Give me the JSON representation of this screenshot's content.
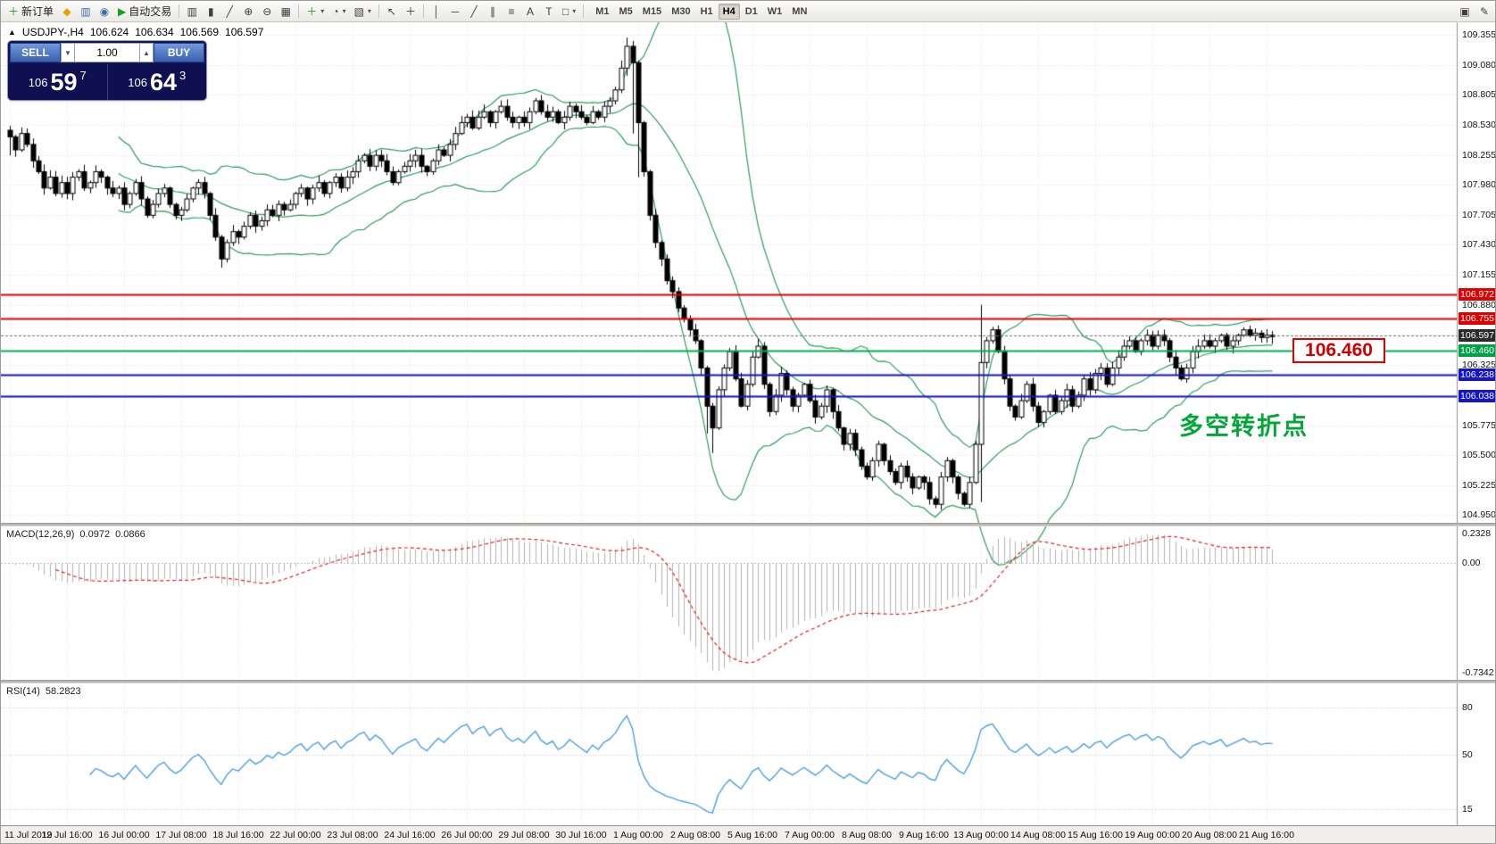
{
  "toolbar": {
    "items": [
      {
        "name": "new-order",
        "glyph": "＋",
        "color": "#18a018",
        "label": "新订单"
      },
      {
        "name": "metaquotes",
        "glyph": "◆",
        "color": "#e0a500"
      },
      {
        "name": "market-watch",
        "glyph": "▥",
        "color": "#3a6ea5"
      },
      {
        "name": "data-window",
        "glyph": "◉",
        "color": "#3a6ea5"
      },
      {
        "name": "auto-trading",
        "glyph": "▶",
        "color": "#18a018",
        "label": "自动交易"
      },
      {
        "name": "sep"
      },
      {
        "name": "chart-bars",
        "glyph": "▥",
        "color": "#404040"
      },
      {
        "name": "chart-candles",
        "glyph": "▮",
        "color": "#404040"
      },
      {
        "name": "chart-line",
        "glyph": "╱",
        "color": "#404040"
      },
      {
        "name": "zoom-in",
        "glyph": "⊕",
        "color": "#404040"
      },
      {
        "name": "zoom-out",
        "glyph": "⊖",
        "color": "#404040"
      },
      {
        "name": "tile-windows",
        "glyph": "▦",
        "color": "#404040"
      },
      {
        "name": "sep"
      },
      {
        "name": "indicators-add",
        "glyph": "＋",
        "color": "#18a018",
        "dropdown": true
      },
      {
        "name": "periods",
        "glyph": "◔",
        "color": "#404040",
        "dropdown": true
      },
      {
        "name": "templates",
        "glyph": "▧",
        "color": "#404040",
        "dropdown": true
      },
      {
        "name": "sep"
      },
      {
        "name": "cursor",
        "glyph": "↖",
        "color": "#404040"
      },
      {
        "name": "crosshair",
        "glyph": "＋",
        "color": "#404040"
      },
      {
        "name": "sep"
      },
      {
        "name": "vertical-line",
        "glyph": "│",
        "color": "#404040"
      },
      {
        "name": "horizontal-line",
        "glyph": "─",
        "color": "#404040"
      },
      {
        "name": "trend-line",
        "glyph": "╱",
        "color": "#404040"
      },
      {
        "name": "equidistant-channel",
        "glyph": "∥",
        "color": "#404040"
      },
      {
        "name": "fibonacci",
        "glyph": "≡",
        "color": "#404040"
      },
      {
        "name": "text",
        "glyph": "A",
        "color": "#404040"
      },
      {
        "name": "text-label",
        "glyph": "T",
        "color": "#404040"
      },
      {
        "name": "shapes",
        "glyph": "□",
        "color": "#404040",
        "dropdown": true
      },
      {
        "name": "sep"
      }
    ],
    "timeframes": [
      "M1",
      "M5",
      "M15",
      "M30",
      "H1",
      "H4",
      "D1",
      "W1",
      "MN"
    ],
    "active_timeframe": "H4",
    "right_items": [
      {
        "name": "window-restore",
        "glyph": "▣",
        "color": "#404040"
      },
      {
        "name": "chart-properties",
        "glyph": "✎",
        "color": "#404040"
      }
    ]
  },
  "chart_header": {
    "symbol": "USDJPY-,H4",
    "open": "106.624",
    "high": "106.634",
    "low": "106.569",
    "close": "106.597"
  },
  "one_click": {
    "sell_label": "SELL",
    "buy_label": "BUY",
    "volume": "1.00",
    "sell": {
      "main": "106",
      "big": "59",
      "sup": "7"
    },
    "buy": {
      "main": "106",
      "big": "64",
      "sup": "3"
    }
  },
  "annotations": {
    "turning_point": "多空转折点",
    "price_callout": "106.460"
  },
  "indicators": {
    "macd": {
      "label": "MACD(12,26,9)",
      "value_main": "0.0972",
      "value_signal": "0.0866",
      "axis_top": "0.2328",
      "axis_zero": "0.00",
      "axis_bottom": "-0.7342"
    },
    "rsi": {
      "label": "RSI(14)",
      "value": "58.2823",
      "levels": [
        "80",
        "50",
        "15"
      ]
    }
  },
  "price_axis": {
    "labels": [
      "109.355",
      "109.080",
      "108.805",
      "108.530",
      "108.255",
      "107.980",
      "107.705",
      "107.430",
      "107.155",
      "106.880",
      "106.325",
      "105.775",
      "105.500",
      "105.225",
      "104.950"
    ],
    "tags": [
      {
        "text": "106.972",
        "bg": "#e00000"
      },
      {
        "text": "106.755",
        "bg": "#e00000"
      },
      {
        "text": "106.597",
        "bg": "#2b2b2b"
      },
      {
        "text": "106.460",
        "bg": "#00a245"
      },
      {
        "text": "106.238",
        "bg": "#1414cc"
      },
      {
        "text": "106.038",
        "bg": "#1414cc"
      }
    ]
  },
  "time_axis": {
    "labels": [
      "11 Jul 2019",
      "12 Jul 16:00",
      "16 Jul 00:00",
      "17 Jul 08:00",
      "18 Jul 16:00",
      "22 Jul 00:00",
      "23 Jul 08:00",
      "24 Jul 16:00",
      "26 Jul 00:00",
      "29 Jul 08:00",
      "30 Jul 16:00",
      "1 Aug 00:00",
      "2 Aug 08:00",
      "5 Aug 16:00",
      "7 Aug 00:00",
      "8 Aug 08:00",
      "9 Aug 16:00",
      "13 Aug 00:00",
      "14 Aug 08:00",
      "15 Aug 16:00",
      "19 Aug 00:00",
      "20 Aug 08:00",
      "21 Aug 16:00"
    ]
  },
  "chart_data": {
    "type": "candlestick",
    "symbol": "USDJPY",
    "timeframe": "H4",
    "price_range": [
      104.88,
      109.47
    ],
    "time_labels_every": 10,
    "candle_up": "#ffffff",
    "candle_down": "#000000",
    "candle_border": "#000000",
    "closes": [
      108.42,
      108.3,
      108.45,
      108.35,
      108.2,
      108.1,
      107.95,
      108.05,
      107.9,
      108.0,
      107.9,
      108.05,
      108.1,
      107.95,
      108.0,
      108.1,
      108.05,
      107.95,
      107.9,
      107.95,
      107.8,
      107.9,
      108.0,
      107.85,
      107.7,
      107.8,
      107.9,
      107.95,
      107.8,
      107.7,
      107.75,
      107.85,
      107.95,
      108.0,
      107.9,
      107.7,
      107.5,
      107.3,
      107.45,
      107.55,
      107.5,
      107.6,
      107.7,
      107.6,
      107.65,
      107.75,
      107.7,
      107.8,
      107.75,
      107.8,
      107.9,
      107.95,
      107.85,
      107.95,
      108.0,
      107.9,
      108.0,
      108.05,
      107.95,
      108.05,
      108.1,
      108.2,
      108.25,
      108.15,
      108.25,
      108.2,
      108.1,
      108.0,
      108.1,
      108.15,
      108.2,
      108.25,
      108.15,
      108.1,
      108.2,
      108.3,
      108.25,
      108.35,
      108.45,
      108.55,
      108.6,
      108.5,
      108.6,
      108.65,
      108.55,
      108.65,
      108.7,
      108.6,
      108.55,
      108.6,
      108.55,
      108.65,
      108.75,
      108.65,
      108.6,
      108.65,
      108.55,
      108.6,
      108.7,
      108.65,
      108.6,
      108.55,
      108.65,
      108.6,
      108.7,
      108.75,
      108.85,
      109.05,
      109.25,
      109.1,
      108.55,
      108.1,
      107.7,
      107.45,
      107.3,
      107.1,
      107.0,
      106.85,
      106.75,
      106.65,
      106.55,
      106.3,
      105.95,
      105.75,
      106.1,
      106.3,
      106.45,
      106.2,
      105.95,
      106.15,
      106.4,
      106.5,
      106.15,
      105.9,
      106.05,
      106.25,
      106.1,
      105.95,
      106.05,
      106.15,
      106.0,
      105.85,
      105.95,
      106.1,
      105.9,
      105.75,
      105.6,
      105.7,
      105.55,
      105.4,
      105.3,
      105.45,
      105.6,
      105.45,
      105.35,
      105.25,
      105.4,
      105.3,
      105.2,
      105.3,
      105.25,
      105.1,
      105.05,
      105.3,
      105.45,
      105.3,
      105.15,
      105.05,
      105.25,
      105.6,
      106.35,
      106.55,
      106.65,
      106.45,
      106.2,
      105.95,
      105.85,
      106.0,
      106.15,
      105.95,
      105.8,
      105.9,
      106.05,
      105.9,
      106.0,
      106.1,
      105.95,
      106.05,
      106.2,
      106.1,
      106.25,
      106.3,
      106.15,
      106.3,
      106.4,
      106.5,
      106.55,
      106.45,
      106.55,
      106.6,
      106.5,
      106.6,
      106.55,
      106.4,
      106.3,
      106.2,
      106.3,
      106.45,
      106.5,
      106.55,
      106.5,
      106.55,
      106.6,
      106.5,
      106.55,
      106.6,
      106.65,
      106.6,
      106.62,
      106.58,
      106.6,
      106.597
    ],
    "wick_overrides": {
      "0": [
        108.52,
        108.25
      ],
      "37": [
        107.52,
        107.22
      ],
      "107": [
        109.12,
        108.82
      ],
      "108": [
        109.33,
        108.98
      ],
      "109": [
        109.3,
        108.45
      ],
      "110": [
        109.12,
        108.05
      ],
      "122": [
        106.32,
        105.7
      ],
      "123": [
        105.98,
        105.52
      ],
      "170": [
        106.88,
        105.07
      ],
      "221": [
        106.64,
        106.52
      ]
    },
    "grid_prices": [
      109.355,
      109.08,
      108.805,
      108.53,
      108.255,
      107.98,
      107.705,
      107.43,
      107.155,
      106.88,
      106.603,
      106.325,
      106.05,
      105.775,
      105.5,
      105.225,
      104.95
    ],
    "hlines": [
      {
        "price": 106.972,
        "color": "#e00000"
      },
      {
        "price": 106.755,
        "color": "#e00000"
      },
      {
        "price": 106.46,
        "color": "#00b050"
      },
      {
        "price": 106.238,
        "color": "#1414cc"
      },
      {
        "price": 106.038,
        "color": "#1414cc"
      }
    ],
    "current_price": 106.597,
    "bollinger": {
      "period": 20,
      "deviation": 2,
      "color": "#2e9e5b"
    },
    "macd": {
      "fast": 12,
      "slow": 26,
      "signal": 9,
      "hist_color": "#b2b2b2",
      "signal_color": "#e02020",
      "range": [
        -0.7342,
        0.2328
      ]
    },
    "rsi": {
      "period": 14,
      "color": "#4a9fe3",
      "levels": [
        80,
        50,
        15
      ],
      "range": [
        5,
        95
      ]
    }
  }
}
